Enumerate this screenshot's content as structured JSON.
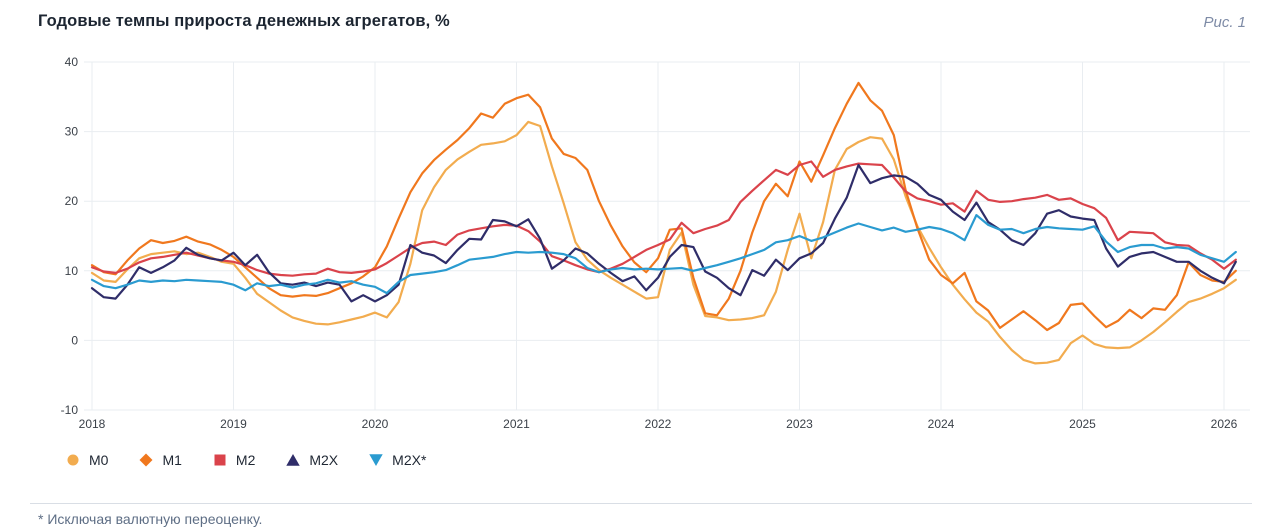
{
  "header": {
    "title": "Годовые темпы прироста денежных агрегатов, %",
    "figure_label": "Рис. 1"
  },
  "footnote": {
    "text": "* Исключая валютную переоценку."
  },
  "legend": {
    "position": "bottom",
    "items": [
      {
        "label": "M0",
        "shape": "circle",
        "color": "#F2AC4F"
      },
      {
        "label": "M1",
        "shape": "diamond",
        "color": "#F0781E"
      },
      {
        "label": "M2",
        "shape": "square",
        "color": "#DA434B"
      },
      {
        "label": "M2X",
        "shape": "triangle-up",
        "color": "#2F2D69"
      },
      {
        "label": "M2X*",
        "shape": "triangle-down",
        "color": "#2A9BD0"
      }
    ]
  },
  "chart_data": {
    "type": "line",
    "title": "Годовые темпы прироста денежных агрегатов, %",
    "xlabel": "",
    "ylabel": "%",
    "frequency": "monthly",
    "x_start_year": 2018,
    "x_ticks": [
      2018,
      2019,
      2020,
      2021,
      2022,
      2023,
      2024,
      2025,
      2026
    ],
    "y_ticks": [
      40,
      30,
      20,
      10,
      0,
      -10
    ],
    "ylim": [
      -10,
      40
    ],
    "grid": true,
    "legend_position": "bottom",
    "series": [
      {
        "name": "M0",
        "marker": "circle",
        "color": "#F2AC4F",
        "values": [
          9.7,
          8.6,
          8.4,
          10.2,
          11.8,
          12.4,
          12.6,
          12.8,
          12.4,
          12.6,
          12.0,
          11.3,
          11.0,
          9.0,
          6.7,
          5.5,
          4.3,
          3.3,
          2.8,
          2.4,
          2.3,
          2.6,
          3.0,
          3.4,
          4.0,
          3.3,
          5.5,
          11.0,
          18.7,
          22.0,
          24.5,
          26.0,
          27.1,
          28.1,
          28.3,
          28.6,
          29.5,
          31.4,
          30.8,
          25.0,
          19.7,
          14.1,
          11.6,
          10.1,
          9.0,
          8.0,
          7.0,
          6.0,
          6.2,
          13.0,
          15.5,
          8.0,
          3.5,
          3.3,
          2.9,
          3.0,
          3.2,
          3.6,
          7.0,
          13.0,
          18.2,
          11.8,
          17.0,
          24.5,
          27.5,
          28.5,
          29.2,
          29.0,
          26.0,
          20.7,
          16.4,
          13.3,
          10.5,
          8.0,
          5.9,
          4.0,
          2.7,
          0.5,
          -1.4,
          -2.8,
          -3.3,
          -3.2,
          -2.8,
          -0.4,
          0.7,
          -0.5,
          -1.0,
          -1.1,
          -1.0,
          0.0,
          1.2,
          2.6,
          4.1,
          5.5,
          6.0,
          6.7,
          7.5,
          8.7
        ]
      },
      {
        "name": "M1",
        "marker": "diamond",
        "color": "#F0781E",
        "values": [
          10.8,
          9.8,
          9.5,
          11.5,
          13.2,
          14.4,
          14.0,
          14.3,
          14.9,
          14.2,
          13.8,
          13.0,
          12.0,
          10.5,
          9.0,
          7.5,
          6.5,
          6.3,
          6.5,
          6.4,
          6.8,
          7.5,
          8.2,
          9.2,
          10.5,
          13.5,
          17.5,
          21.3,
          24.0,
          25.9,
          27.4,
          28.8,
          30.5,
          32.6,
          32.0,
          34.0,
          34.8,
          35.3,
          33.5,
          29.0,
          26.8,
          26.2,
          24.5,
          20.0,
          16.5,
          13.5,
          11.2,
          9.8,
          11.8,
          15.9,
          16.1,
          9.0,
          3.9,
          3.6,
          6.0,
          10.0,
          15.5,
          20.0,
          22.5,
          20.7,
          25.7,
          22.8,
          26.6,
          30.5,
          34.0,
          37.0,
          34.5,
          33.0,
          29.5,
          21.6,
          16.1,
          11.6,
          9.4,
          8.2,
          9.7,
          5.6,
          4.3,
          1.8,
          3.0,
          4.2,
          2.9,
          1.5,
          2.5,
          5.1,
          5.3,
          3.5,
          1.9,
          2.8,
          4.4,
          3.2,
          4.6,
          4.4,
          6.5,
          11.2,
          9.4,
          8.6,
          8.4,
          10.0
        ]
      },
      {
        "name": "M2",
        "marker": "square",
        "color": "#DA434B",
        "values": [
          10.5,
          9.9,
          9.7,
          10.3,
          11.2,
          11.8,
          12.0,
          12.3,
          12.6,
          12.2,
          11.8,
          11.5,
          11.3,
          10.8,
          10.1,
          9.6,
          9.4,
          9.3,
          9.5,
          9.6,
          10.3,
          9.8,
          9.7,
          9.9,
          10.2,
          11.1,
          12.2,
          13.3,
          14.0,
          14.2,
          13.7,
          15.2,
          15.8,
          16.1,
          16.4,
          16.6,
          16.5,
          15.7,
          14.2,
          12.1,
          11.5,
          10.8,
          10.2,
          9.8,
          10.3,
          11.0,
          12.0,
          13.0,
          13.7,
          14.5,
          16.9,
          15.4,
          16.0,
          16.5,
          17.3,
          19.9,
          21.5,
          23.0,
          24.5,
          23.8,
          25.2,
          25.7,
          23.5,
          24.5,
          25.0,
          25.4,
          25.3,
          25.2,
          23.4,
          21.4,
          20.4,
          20.0,
          19.5,
          19.7,
          18.5,
          21.5,
          20.2,
          19.9,
          20.0,
          20.3,
          20.5,
          20.9,
          20.2,
          20.4,
          19.6,
          19.0,
          17.6,
          14.4,
          15.6,
          15.5,
          15.4,
          14.1,
          13.7,
          13.6,
          12.5,
          11.6,
          10.3,
          11.6
        ]
      },
      {
        "name": "M2X",
        "marker": "triangle-up",
        "color": "#2F2D69",
        "values": [
          7.5,
          6.2,
          6.0,
          8.0,
          10.5,
          9.7,
          10.5,
          11.5,
          13.3,
          12.3,
          11.8,
          11.5,
          12.6,
          10.8,
          12.3,
          9.8,
          8.2,
          8.0,
          8.3,
          7.8,
          8.3,
          8.0,
          5.6,
          6.5,
          5.6,
          6.5,
          8.0,
          13.7,
          12.6,
          12.2,
          11.1,
          13.0,
          14.6,
          14.5,
          17.3,
          17.1,
          16.4,
          17.4,
          14.6,
          10.3,
          11.5,
          13.2,
          12.5,
          11.0,
          9.7,
          8.5,
          9.2,
          7.2,
          9.0,
          12.0,
          13.7,
          13.4,
          9.9,
          9.0,
          7.5,
          6.5,
          10.1,
          9.3,
          11.6,
          10.1,
          11.8,
          12.5,
          14.0,
          17.5,
          20.5,
          25.2,
          22.6,
          23.3,
          23.7,
          23.5,
          22.5,
          20.9,
          20.2,
          18.5,
          17.3,
          19.8,
          17.0,
          15.9,
          14.4,
          13.7,
          15.4,
          18.2,
          18.7,
          17.8,
          17.5,
          17.3,
          13.2,
          10.6,
          12.0,
          12.5,
          12.7,
          12.0,
          11.3,
          11.3,
          10.0,
          9.0,
          8.2,
          11.3
        ]
      },
      {
        "name": "M2X*",
        "marker": "triangle-down",
        "color": "#2A9BD0",
        "values": [
          8.7,
          7.8,
          7.5,
          8.0,
          8.6,
          8.4,
          8.6,
          8.5,
          8.7,
          8.6,
          8.5,
          8.4,
          8.0,
          7.2,
          8.2,
          7.8,
          8.0,
          7.6,
          8.0,
          8.2,
          8.7,
          8.3,
          8.5,
          8.0,
          7.7,
          6.8,
          8.4,
          9.4,
          9.6,
          9.8,
          10.1,
          10.8,
          11.6,
          11.8,
          12.0,
          12.4,
          12.7,
          12.6,
          12.7,
          12.6,
          12.4,
          11.8,
          10.4,
          9.8,
          10.2,
          10.4,
          10.2,
          10.3,
          10.2,
          10.3,
          10.4,
          10.0,
          10.4,
          10.8,
          11.3,
          11.8,
          12.4,
          13.0,
          14.1,
          14.4,
          15.0,
          14.3,
          14.8,
          15.5,
          16.2,
          16.8,
          16.3,
          15.8,
          16.2,
          15.6,
          15.9,
          16.3,
          16.0,
          15.4,
          14.4,
          18.0,
          16.6,
          15.9,
          16.0,
          15.4,
          16.0,
          16.3,
          16.1,
          16.0,
          15.9,
          16.4,
          14.2,
          12.7,
          13.4,
          13.7,
          13.7,
          13.2,
          13.4,
          13.2,
          12.3,
          11.8,
          11.3,
          12.7
        ]
      }
    ]
  },
  "colors": {
    "background": "#FFFFFF",
    "grid": "#E9EDF1",
    "axis_text": "#3B4149",
    "title_text": "#1C2531",
    "figure_label_text": "#7E8BA6",
    "footnote_text": "#5E6E85",
    "divider": "#D9DEE5"
  }
}
